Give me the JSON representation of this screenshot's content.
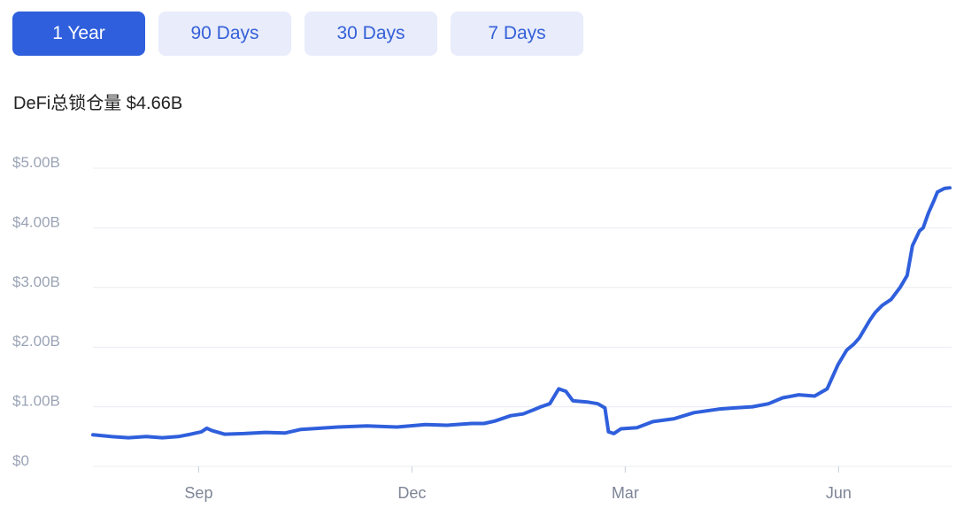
{
  "range_tabs": [
    {
      "label": "1 Year",
      "active": true
    },
    {
      "label": "90 Days",
      "active": false
    },
    {
      "label": "30 Days",
      "active": false
    },
    {
      "label": "7 Days",
      "active": false
    }
  ],
  "colors": {
    "accent": "#2f5fdc",
    "tab_bg": "#e8ecfb",
    "line": "#2f5fdc",
    "grid": "#e9ecf2"
  },
  "chart_data": {
    "type": "line",
    "title": "DeFi总锁仓量 $4.66B",
    "xlabel": "",
    "ylabel": "",
    "ylim": [
      0,
      5
    ],
    "yunit": "billion USD",
    "yticks": [
      {
        "value": 0,
        "label": "$0"
      },
      {
        "value": 1,
        "label": "$1.00B"
      },
      {
        "value": 2,
        "label": "$2.00B"
      },
      {
        "value": 3,
        "label": "$3.00B"
      },
      {
        "value": 4,
        "label": "$4.00B"
      },
      {
        "value": 5,
        "label": "$5.00B"
      }
    ],
    "xticks": [
      {
        "label": "Sep",
        "pos": 0.1234
      },
      {
        "label": "Dec",
        "pos": 0.3723
      },
      {
        "label": "Mar",
        "pos": 0.6212
      },
      {
        "label": "Jun",
        "pos": 0.8702
      }
    ],
    "grid": true,
    "series": [
      {
        "name": "",
        "x": [
          0,
          0.0213,
          0.0415,
          0.0622,
          0.0809,
          0.0996,
          0.1141,
          0.1266,
          0.1328,
          0.139,
          0.1535,
          0.1763,
          0.2012,
          0.2241,
          0.2427,
          0.2863,
          0.3195,
          0.3548,
          0.388,
          0.4129,
          0.4419,
          0.4564,
          0.4689,
          0.4876,
          0.5021,
          0.5145,
          0.5228,
          0.5332,
          0.5373,
          0.5436,
          0.5519,
          0.5602,
          0.5768,
          0.5892,
          0.5975,
          0.6017,
          0.6079,
          0.6162,
          0.6349,
          0.6535,
          0.6784,
          0.7012,
          0.7303,
          0.749,
          0.7697,
          0.7884,
          0.805,
          0.8237,
          0.8423,
          0.8568,
          0.8693,
          0.8797,
          0.888,
          0.8942,
          0.9066,
          0.9129,
          0.9212,
          0.9315,
          0.9419,
          0.9502,
          0.9564,
          0.9647,
          0.9689,
          0.9751,
          0.9813,
          0.9855,
          0.9938,
          1.0
        ],
        "values": [
          0.53,
          0.5,
          0.48,
          0.5,
          0.48,
          0.5,
          0.54,
          0.58,
          0.64,
          0.6,
          0.54,
          0.55,
          0.57,
          0.56,
          0.62,
          0.66,
          0.68,
          0.66,
          0.7,
          0.69,
          0.72,
          0.72,
          0.76,
          0.85,
          0.88,
          0.95,
          1.0,
          1.05,
          1.15,
          1.3,
          1.26,
          1.1,
          1.08,
          1.05,
          0.98,
          0.58,
          0.55,
          0.63,
          0.65,
          0.75,
          0.8,
          0.9,
          0.96,
          0.98,
          1.0,
          1.05,
          1.15,
          1.2,
          1.18,
          1.3,
          1.7,
          1.95,
          2.05,
          2.15,
          2.45,
          2.58,
          2.7,
          2.8,
          3.0,
          3.2,
          3.7,
          3.95,
          4.0,
          4.25,
          4.45,
          4.6,
          4.66,
          4.67
        ]
      }
    ]
  }
}
